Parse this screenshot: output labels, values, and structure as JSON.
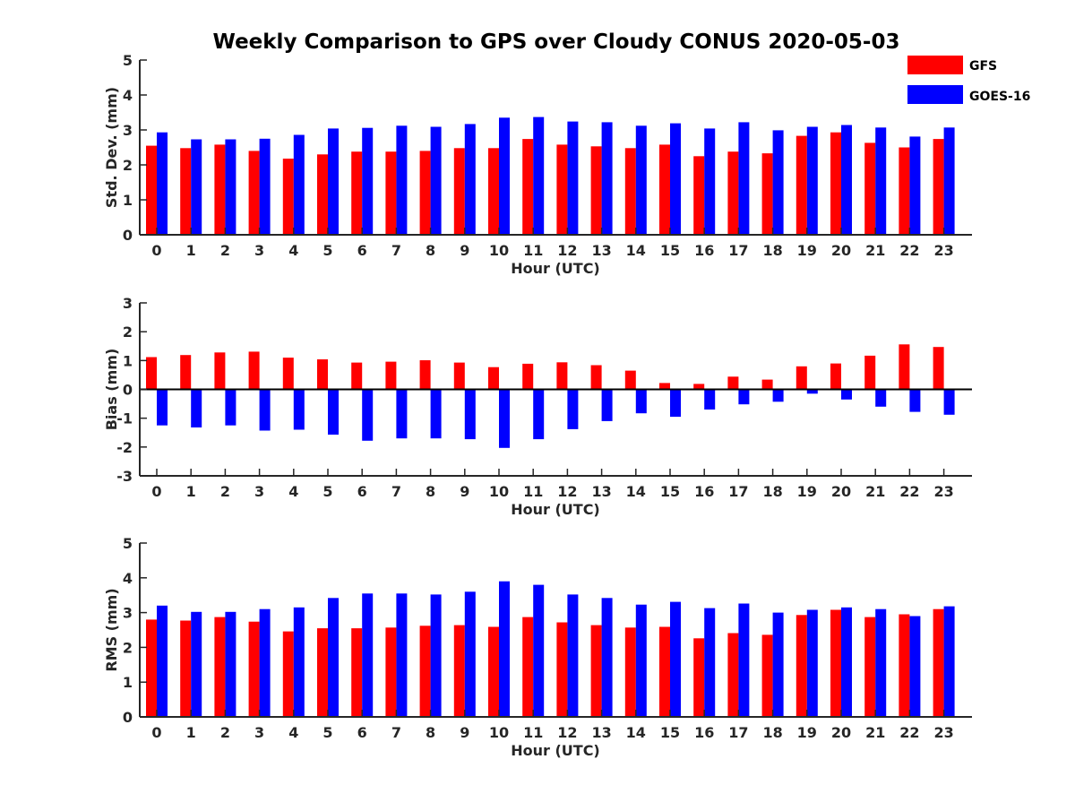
{
  "title": "Weekly Comparison to GPS over Cloudy CONUS 2020-05-03",
  "legend": {
    "placement": "top-right",
    "items": [
      {
        "label": "GFS",
        "color": "#ff0000"
      },
      {
        "label": "GOES-16",
        "color": "#0000ff"
      }
    ]
  },
  "chart_data": [
    {
      "type": "bar",
      "xlabel": "Hour (UTC)",
      "ylabel": "Std. Dev. (mm)",
      "ylim": [
        0,
        5
      ],
      "yticks": [
        "0",
        "1",
        "2",
        "3",
        "4",
        "5"
      ],
      "categories": [
        "0",
        "1",
        "2",
        "3",
        "4",
        "5",
        "6",
        "7",
        "8",
        "9",
        "10",
        "11",
        "12",
        "13",
        "14",
        "15",
        "16",
        "17",
        "18",
        "19",
        "20",
        "21",
        "22",
        "23"
      ],
      "series": [
        {
          "name": "GFS",
          "color": "#ff0000",
          "values": [
            2.55,
            2.48,
            2.58,
            2.4,
            2.18,
            2.3,
            2.38,
            2.38,
            2.4,
            2.48,
            2.48,
            2.74,
            2.58,
            2.53,
            2.48,
            2.58,
            2.25,
            2.38,
            2.33,
            2.83,
            2.93,
            2.63,
            2.5,
            2.74
          ]
        },
        {
          "name": "GOES-16",
          "color": "#0000ff",
          "values": [
            2.93,
            2.73,
            2.73,
            2.75,
            2.86,
            3.04,
            3.06,
            3.12,
            3.09,
            3.17,
            3.35,
            3.37,
            3.24,
            3.22,
            3.12,
            3.19,
            3.04,
            3.22,
            2.99,
            3.09,
            3.14,
            3.07,
            2.81,
            3.07
          ]
        }
      ]
    },
    {
      "type": "bar",
      "xlabel": "Hour (UTC)",
      "ylabel": "Bias (mm)",
      "ylim": [
        -3,
        3
      ],
      "yticks": [
        "-3",
        "-2",
        "-1",
        "0",
        "1",
        "2",
        "3"
      ],
      "categories": [
        "0",
        "1",
        "2",
        "3",
        "4",
        "5",
        "6",
        "7",
        "8",
        "9",
        "10",
        "11",
        "12",
        "13",
        "14",
        "15",
        "16",
        "17",
        "18",
        "19",
        "20",
        "21",
        "22",
        "23"
      ],
      "series": [
        {
          "name": "GFS",
          "color": "#ff0000",
          "values": [
            1.12,
            1.19,
            1.28,
            1.31,
            1.1,
            1.04,
            0.93,
            0.96,
            1.01,
            0.93,
            0.77,
            0.89,
            0.94,
            0.84,
            0.65,
            0.22,
            0.19,
            0.44,
            0.34,
            0.8,
            0.9,
            1.17,
            1.56,
            1.47
          ]
        },
        {
          "name": "GOES-16",
          "color": "#0000ff",
          "values": [
            -1.25,
            -1.32,
            -1.25,
            -1.43,
            -1.4,
            -1.57,
            -1.78,
            -1.7,
            -1.7,
            -1.73,
            -2.03,
            -1.73,
            -1.38,
            -1.1,
            -0.83,
            -0.95,
            -0.7,
            -0.52,
            -0.43,
            -0.15,
            -0.35,
            -0.6,
            -0.78,
            -0.88
          ]
        }
      ]
    },
    {
      "type": "bar",
      "xlabel": "Hour (UTC)",
      "ylabel": "RMS (mm)",
      "ylim": [
        0,
        5
      ],
      "yticks": [
        "0",
        "1",
        "2",
        "3",
        "4",
        "5"
      ],
      "categories": [
        "0",
        "1",
        "2",
        "3",
        "4",
        "5",
        "6",
        "7",
        "8",
        "9",
        "10",
        "11",
        "12",
        "13",
        "14",
        "15",
        "16",
        "17",
        "18",
        "19",
        "20",
        "21",
        "22",
        "23"
      ],
      "series": [
        {
          "name": "GFS",
          "color": "#ff0000",
          "values": [
            2.8,
            2.77,
            2.87,
            2.74,
            2.46,
            2.55,
            2.55,
            2.57,
            2.62,
            2.64,
            2.59,
            2.87,
            2.72,
            2.64,
            2.57,
            2.59,
            2.26,
            2.41,
            2.36,
            2.93,
            3.08,
            2.87,
            2.95,
            3.1
          ]
        },
        {
          "name": "GOES-16",
          "color": "#0000ff",
          "values": [
            3.2,
            3.02,
            3.02,
            3.1,
            3.15,
            3.42,
            3.55,
            3.55,
            3.52,
            3.6,
            3.9,
            3.8,
            3.52,
            3.42,
            3.23,
            3.31,
            3.13,
            3.26,
            3.0,
            3.08,
            3.15,
            3.1,
            2.9,
            3.18
          ]
        }
      ]
    }
  ]
}
